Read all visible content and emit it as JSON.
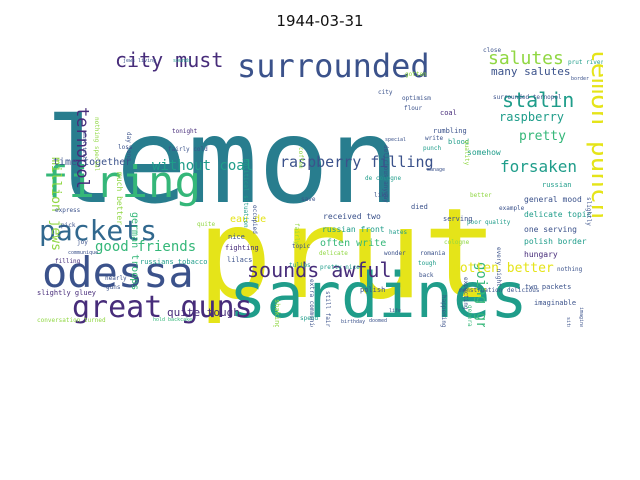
{
  "title": "1944-03-31",
  "palette": {
    "yellow": "#e5e419",
    "teal": "#1f9d8a",
    "teal_dark": "#287d8e",
    "navy": "#3b528b",
    "purple": "#472c7a",
    "green": "#35b779",
    "lime": "#90d743",
    "blue": "#31688e"
  },
  "words": [
    {
      "text": "prut",
      "color": "yellow"
    },
    {
      "text": "lemon",
      "color": "teal_dark"
    },
    {
      "text": "sardines",
      "color": "teal"
    },
    {
      "text": "odessa",
      "color": "navy"
    },
    {
      "text": "firing",
      "color": "green"
    },
    {
      "text": "surrounded",
      "color": "navy"
    },
    {
      "text": "great guns",
      "color": "purple"
    },
    {
      "text": "packets",
      "color": "blue"
    },
    {
      "text": "lemon punch",
      "color": "yellow"
    },
    {
      "text": "sounds awful",
      "color": "purple"
    },
    {
      "text": "city must",
      "color": "purple"
    },
    {
      "text": "stalin",
      "color": "teal"
    },
    {
      "text": "salutes",
      "color": "lime"
    },
    {
      "text": "raspberry filling",
      "color": "navy"
    },
    {
      "text": "forsaken",
      "color": "teal"
    },
    {
      "text": "good friends",
      "color": "green"
    },
    {
      "text": "without coal",
      "color": "teal"
    },
    {
      "text": "going great",
      "color": "green"
    },
    {
      "text": "gotten better",
      "color": "yellow"
    },
    {
      "text": "ternopol",
      "color": "purple"
    },
    {
      "text": "million jews",
      "color": "lime"
    },
    {
      "text": "raspberry",
      "color": "teal"
    },
    {
      "text": "pretty",
      "color": "green"
    },
    {
      "text": "many salutes",
      "color": "navy"
    },
    {
      "text": "time together",
      "color": "navy"
    },
    {
      "text": "german troops",
      "color": "green"
    },
    {
      "text": "much better",
      "color": "lime"
    },
    {
      "text": "eau de",
      "color": "yellow"
    },
    {
      "text": "quite tough",
      "color": "purple"
    },
    {
      "text": "often write",
      "color": "green"
    },
    {
      "text": "received two",
      "color": "navy"
    },
    {
      "text": "russian front",
      "color": "teal"
    },
    {
      "text": "general mood",
      "color": "navy"
    },
    {
      "text": "delicate topic",
      "color": "teal"
    },
    {
      "text": "one serving",
      "color": "navy"
    },
    {
      "text": "polish border",
      "color": "teal"
    },
    {
      "text": "hungary",
      "color": "purple"
    },
    {
      "text": "two packets",
      "color": "navy"
    },
    {
      "text": "imaginable",
      "color": "navy"
    },
    {
      "text": "nothing",
      "color": "navy"
    },
    {
      "text": "slightly gluey",
      "color": "purple"
    },
    {
      "text": "russians tobacco",
      "color": "teal"
    },
    {
      "text": "conversation turned",
      "color": "lime"
    },
    {
      "text": "hold backcake",
      "color": "green"
    },
    {
      "text": "surrounded ternopol",
      "color": "navy"
    },
    {
      "text": "rumbling",
      "color": "navy"
    },
    {
      "text": "blood",
      "color": "teal"
    },
    {
      "text": "somehow",
      "color": "teal"
    },
    {
      "text": "poor quality",
      "color": "teal"
    },
    {
      "text": "coal",
      "color": "purple"
    },
    {
      "text": "de cologne",
      "color": "teal"
    },
    {
      "text": "nice",
      "color": "navy"
    },
    {
      "text": "fighting",
      "color": "purple"
    },
    {
      "text": "lilacs",
      "color": "navy"
    },
    {
      "text": "tulips",
      "color": "teal"
    },
    {
      "text": "topic",
      "color": "navy"
    },
    {
      "text": "fairly cold",
      "color": "navy"
    },
    {
      "text": "tonight",
      "color": "purple"
    },
    {
      "text": "pretty nice",
      "color": "teal"
    },
    {
      "text": "romania",
      "color": "navy"
    },
    {
      "text": "polish",
      "color": "navy"
    },
    {
      "text": "spend",
      "color": "teal"
    },
    {
      "text": "delicate",
      "color": "lime"
    },
    {
      "text": "doomed",
      "color": "navy"
    },
    {
      "text": "died",
      "color": "navy"
    },
    {
      "text": "tough",
      "color": "teal"
    },
    {
      "text": "back",
      "color": "navy"
    },
    {
      "text": "serving",
      "color": "navy"
    },
    {
      "text": "russian",
      "color": "teal"
    },
    {
      "text": "optimism",
      "color": "navy"
    },
    {
      "text": "flour",
      "color": "navy"
    },
    {
      "text": "write",
      "color": "navy"
    },
    {
      "text": "punch",
      "color": "teal"
    },
    {
      "text": "fairly",
      "color": "lime"
    },
    {
      "text": "like",
      "color": "navy"
    },
    {
      "text": "hates",
      "color": "teal"
    },
    {
      "text": "occupied",
      "color": "navy"
    },
    {
      "text": "city",
      "color": "navy"
    },
    {
      "text": "quality",
      "color": "lime"
    },
    {
      "text": "filling",
      "color": "purple"
    },
    {
      "text": "must tell",
      "color": "navy"
    },
    {
      "text": "express",
      "color": "navy"
    },
    {
      "text": "joy",
      "color": "navy"
    },
    {
      "text": "loss",
      "color": "navy"
    },
    {
      "text": "quite",
      "color": "lime"
    },
    {
      "text": "save",
      "color": "navy"
    },
    {
      "text": "still fairly",
      "color": "navy"
    },
    {
      "text": "troops",
      "color": "navy"
    },
    {
      "text": "menstruation",
      "color": "navy"
    },
    {
      "text": "delicious",
      "color": "navy"
    },
    {
      "text": "every night",
      "color": "navy"
    },
    {
      "text": "extra communique",
      "color": "navy"
    },
    {
      "text": "political situation",
      "color": "teal"
    },
    {
      "text": "delicious anyway",
      "color": "navy"
    },
    {
      "text": "jews living",
      "color": "navy"
    },
    {
      "text": "sounds",
      "color": "teal"
    },
    {
      "text": "day long",
      "color": "navy"
    },
    {
      "text": "nothing special",
      "color": "lime"
    },
    {
      "text": "close",
      "color": "navy"
    },
    {
      "text": "border",
      "color": "navy"
    },
    {
      "text": "prut river",
      "color": "teal"
    },
    {
      "text": "situation",
      "color": "navy"
    },
    {
      "text": "imaginable subject",
      "color": "navy"
    },
    {
      "text": "slightly",
      "color": "navy"
    },
    {
      "text": "special",
      "color": "navy"
    },
    {
      "text": "gotten",
      "color": "lime"
    },
    {
      "text": "manage",
      "color": "navy"
    },
    {
      "text": "better",
      "color": "lime"
    },
    {
      "text": "expecting",
      "color": "navy"
    },
    {
      "text": "happening",
      "color": "navy"
    },
    {
      "text": "example",
      "color": "navy"
    },
    {
      "text": "wonder",
      "color": "navy"
    },
    {
      "text": "shaking",
      "color": "lime"
    },
    {
      "text": "birthday",
      "color": "navy"
    },
    {
      "text": "communique",
      "color": "navy"
    },
    {
      "text": "nearly",
      "color": "navy"
    },
    {
      "text": "guns",
      "color": "navy"
    },
    {
      "text": "pick",
      "color": "navy"
    },
    {
      "text": "cologne",
      "color": "lime"
    },
    {
      "text": "general",
      "color": "green"
    },
    {
      "text": "life",
      "color": "navy"
    },
    {
      "text": "coffee",
      "color": "lime"
    }
  ]
}
